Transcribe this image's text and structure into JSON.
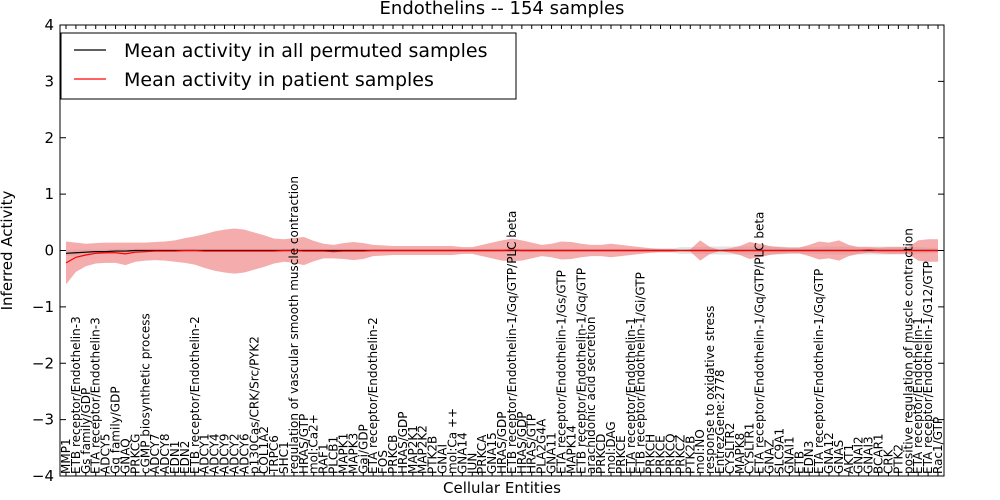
{
  "chart_data": {
    "type": "line",
    "title": "Endothelins -- 154 samples",
    "xlabel": "Cellular Entities",
    "ylabel": "Inferred Activity",
    "ylim": [
      -4,
      4
    ],
    "yticks": [
      "−4",
      "−3",
      "−2",
      "−1",
      "0",
      "1",
      "2",
      "3",
      "4"
    ],
    "grid": false,
    "legend_position": "upper-left",
    "colors": {
      "permuted": "#000000",
      "patient": "#ff0000",
      "patient_band": "#f08080",
      "permuted_band": "#c8c8c8"
    },
    "categories": [
      "MMP1",
      "ETB receptor/Endothelin-3",
      "Gs family/GDP",
      "ETA receptor/Endothelin-3",
      "ADCY5",
      "Gq family/GDP",
      "GNAQ",
      "PRKCG",
      "cGMP biosynthetic process",
      "ADCY7",
      "ADCY8",
      "EDN1",
      "EDN2",
      "ETB receptor/Endothelin-2",
      "ADCY1",
      "ADCY4",
      "ADCY9",
      "ADCY2",
      "ADCY6",
      "p130Cas/CRK/Src/PYK2",
      "COL1A2",
      "TRPC6",
      "SHC1",
      "regulation of vascular smooth muscle contraction",
      "HRAS/GTP",
      "mol:Ca2+",
      "RAF1",
      "PLCB1",
      "MAPK1",
      "MAPK3",
      "Gai/GDP",
      "ETA receptor/Endothelin-2",
      "FOS",
      "PRKCB",
      "HRAS/GDP",
      "MAP2K1",
      "MAP2K2",
      "PTK2B",
      "GNAI",
      "mol:Ca ++",
      "GNA14",
      "JUN",
      "PRKCA",
      "GNA15",
      "HRAS/GDP",
      "ETB receptor/Endothelin-1/Gq/GTP/PLC beta",
      "HRAS/GDP",
      "HRAS/GTP",
      "PLA2G4A",
      "GNA11",
      "ETA receptor/Endothelin-1/Gs/GTP",
      "MAPK14",
      "ETB receptor/Endothelin-1/Gq/GTP",
      "arachidonic acid secretion",
      "PRKCD",
      "mol:DAG",
      "PRKCE",
      "ETA receptor/Endothelin-1",
      "ETB receptor/Endothelin-1/Gi/GTP",
      "PRKCH",
      "PRKCE",
      "PRKCQ",
      "PRKCZ",
      "PTK2B",
      "mol:NO",
      "response to oxidative stress",
      "EntrezGene:2778",
      "CYSLTR2",
      "MAPK8",
      "CYSLTR1",
      "ETA receptor/Endothelin-1/Gq/GTP/PLC beta",
      "GNAZ",
      "SLC9A1",
      "GNAI1",
      "ETB",
      "EDN3",
      "ETA receptor/Endothelin-1/Gq/GTP",
      "GNA12",
      "GNAS",
      "AKT1",
      "GNAI2",
      "GNAI3",
      "BCAR1",
      "CRK",
      "PTK2",
      "positive regulation of muscle contraction",
      "ETA receptor/Endothelin-1",
      "ETA receptor/Endothelin-1/G12/GTP",
      "Rac1/GTP"
    ],
    "series": [
      {
        "name": "Mean activity in all permuted samples",
        "color": "#000000",
        "values": [
          -0.05,
          -0.04,
          -0.03,
          -0.02,
          -0.02,
          -0.01,
          -0.01,
          0.0,
          0.0,
          0.0,
          0.0,
          0.0,
          0.0,
          0.0,
          0.0,
          0.0,
          0.0,
          0.0,
          0.0,
          0.0,
          0.0,
          0.0,
          0.0,
          0.0,
          0.0,
          0.0,
          0.0,
          0.0,
          0.0,
          0.0,
          0.0,
          0.0,
          0.0,
          0.0,
          0.0,
          0.0,
          0.0,
          0.0,
          0.0,
          0.0,
          0.0,
          0.0,
          0.0,
          0.0,
          0.0,
          0.0,
          0.0,
          0.0,
          0.0,
          0.0,
          0.0,
          0.0,
          0.0,
          0.0,
          0.0,
          0.0,
          0.0,
          0.0,
          0.0,
          0.0,
          0.0,
          0.0,
          0.0,
          0.0,
          0.0,
          0.0,
          0.0,
          0.0,
          0.0,
          0.0,
          0.0,
          0.0,
          0.0,
          0.0,
          0.0,
          0.0,
          0.0,
          0.0,
          0.0,
          0.0,
          0.0,
          0.0,
          0.0,
          0.0,
          0.0,
          0.0,
          0.0,
          0.0,
          0.0
        ],
        "band": [
          0.05,
          0.05,
          0.05,
          0.04,
          0.04,
          0.04,
          0.04,
          0.03,
          0.03,
          0.03,
          0.03,
          0.03,
          0.03,
          0.03,
          0.03,
          0.03,
          0.03,
          0.03,
          0.03,
          0.03,
          0.03,
          0.03,
          0.03,
          0.03,
          0.03,
          0.03,
          0.03,
          0.03,
          0.03,
          0.03,
          0.03,
          0.03,
          0.03,
          0.03,
          0.03,
          0.03,
          0.03,
          0.03,
          0.03,
          0.03,
          0.03,
          0.03,
          0.03,
          0.03,
          0.03,
          0.03,
          0.03,
          0.03,
          0.03,
          0.03,
          0.03,
          0.03,
          0.03,
          0.03,
          0.03,
          0.03,
          0.03,
          0.03,
          0.03,
          0.03,
          0.03,
          0.03,
          0.06,
          0.06,
          0.06,
          0.07,
          0.07,
          0.07,
          0.07,
          0.07,
          0.07,
          0.07,
          0.07,
          0.06,
          0.06,
          0.06,
          0.06,
          0.07,
          0.07,
          0.07,
          0.07,
          0.07,
          0.07,
          0.07,
          0.07,
          0.07,
          0.06,
          0.05,
          0.04
        ]
      },
      {
        "name": "Mean activity in patient samples",
        "color": "#ff0000",
        "values": [
          -0.22,
          -0.12,
          -0.08,
          -0.05,
          -0.04,
          -0.04,
          -0.06,
          -0.03,
          -0.02,
          -0.01,
          -0.01,
          -0.01,
          0.0,
          0.0,
          -0.01,
          -0.01,
          -0.01,
          -0.01,
          -0.01,
          -0.01,
          -0.01,
          -0.01,
          0.0,
          0.0,
          -0.01,
          -0.01,
          -0.01,
          -0.02,
          -0.01,
          -0.01,
          -0.01,
          0.0,
          0.0,
          0.0,
          0.0,
          0.0,
          0.0,
          0.0,
          0.0,
          0.0,
          0.0,
          0.0,
          0.0,
          0.0,
          0.0,
          0.01,
          0.0,
          0.0,
          0.0,
          0.0,
          0.0,
          0.0,
          0.0,
          0.0,
          0.0,
          0.0,
          0.0,
          0.0,
          0.0,
          0.0,
          0.0,
          0.0,
          0.0,
          0.0,
          0.0,
          0.0,
          0.0,
          0.0,
          0.0,
          0.0,
          0.0,
          0.0,
          0.0,
          0.0,
          0.0,
          0.0,
          0.0,
          0.0,
          0.0,
          0.0,
          0.0,
          0.01,
          0.0,
          0.0,
          0.0,
          0.0,
          0.0,
          0.0,
          0.0
        ],
        "band": [
          0.38,
          0.26,
          0.2,
          0.18,
          0.18,
          0.18,
          0.2,
          0.17,
          0.16,
          0.16,
          0.17,
          0.19,
          0.22,
          0.25,
          0.3,
          0.35,
          0.38,
          0.4,
          0.38,
          0.33,
          0.28,
          0.22,
          0.2,
          0.22,
          0.25,
          0.18,
          0.13,
          0.12,
          0.14,
          0.16,
          0.14,
          0.1,
          0.09,
          0.08,
          0.08,
          0.08,
          0.08,
          0.08,
          0.08,
          0.08,
          0.06,
          0.06,
          0.1,
          0.14,
          0.18,
          0.2,
          0.18,
          0.14,
          0.1,
          0.12,
          0.16,
          0.15,
          0.12,
          0.1,
          0.1,
          0.12,
          0.1,
          0.08,
          0.06,
          0.04,
          0.03,
          0.03,
          0.01,
          0.02,
          0.18,
          0.06,
          0.01,
          0.04,
          0.08,
          0.15,
          0.12,
          0.08,
          0.06,
          0.05,
          0.05,
          0.1,
          0.16,
          0.14,
          0.18,
          0.1,
          0.06,
          0.05,
          0.05,
          0.06,
          0.06,
          0.06,
          0.18,
          0.2,
          0.2
        ]
      }
    ]
  }
}
